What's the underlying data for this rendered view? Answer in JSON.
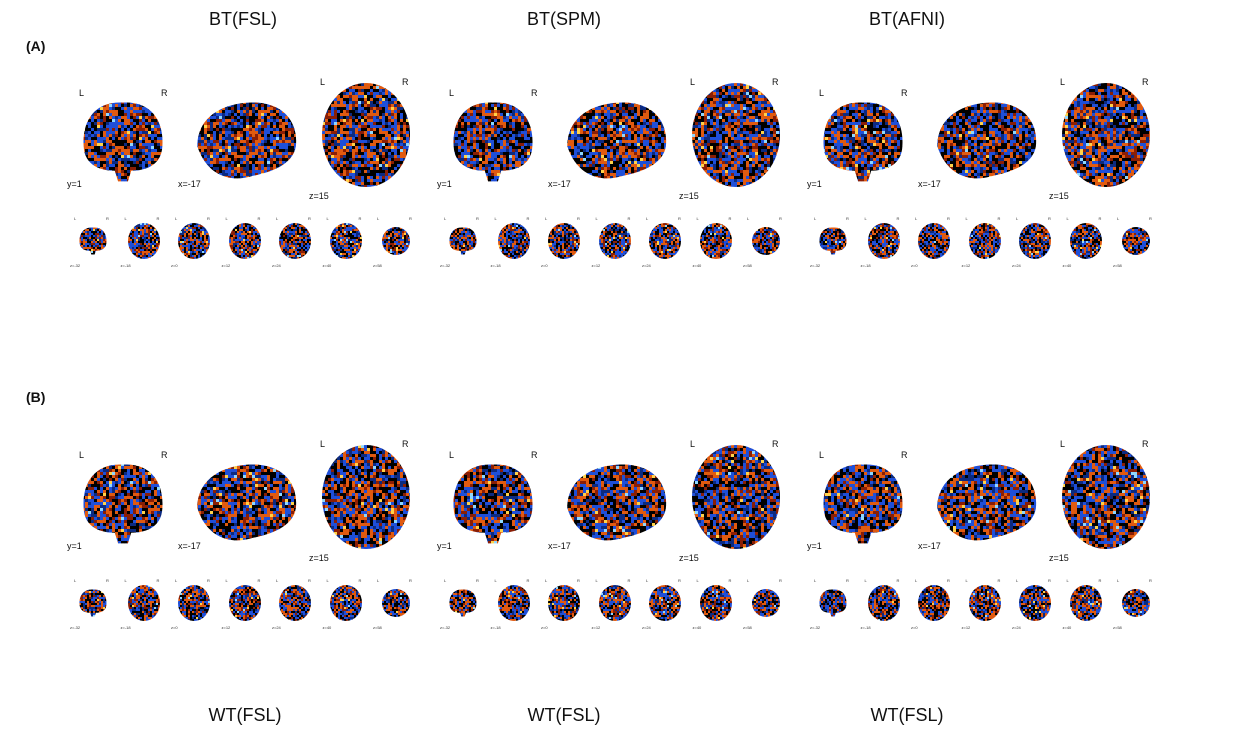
{
  "titles": {
    "top": [
      "BT(FSL)",
      "BT(SPM)",
      "BT(AFNI)"
    ],
    "bottom": [
      "WT(FSL)",
      "WT(FSL)",
      "WT(FSL)"
    ]
  },
  "panels": [
    {
      "label": "(A)",
      "columns": [
        {
          "orientation": {
            "left": "L",
            "right": "R",
            "axial_left": "L",
            "axial_right": "R"
          },
          "cuts": {
            "coronal": "y=1",
            "sagittal": "x=-17",
            "axial": "z=15"
          },
          "mosaic": [
            "z=-32",
            "z=-18",
            "z=0",
            "z=12",
            "z=24",
            "z=40",
            "z=58"
          ]
        },
        {
          "orientation": {
            "left": "L",
            "right": "R",
            "axial_left": "L",
            "axial_right": "R"
          },
          "cuts": {
            "coronal": "y=1",
            "sagittal": "x=-17",
            "axial": "z=15"
          },
          "mosaic": [
            "z=-32",
            "z=-18",
            "z=0",
            "z=12",
            "z=24",
            "z=40",
            "z=58"
          ]
        },
        {
          "orientation": {
            "left": "L",
            "right": "R",
            "axial_left": "L",
            "axial_right": "R"
          },
          "cuts": {
            "coronal": "y=1",
            "sagittal": "x=-17",
            "axial": "z=15"
          },
          "mosaic": [
            "z=-32",
            "z=-18",
            "z=0",
            "z=12",
            "z=24",
            "z=40",
            "z=58"
          ]
        }
      ]
    },
    {
      "label": "(B)",
      "columns": [
        {
          "orientation": {
            "left": "L",
            "right": "R",
            "axial_left": "L",
            "axial_right": "R"
          },
          "cuts": {
            "coronal": "y=1",
            "sagittal": "x=-17",
            "axial": "z=15"
          },
          "mosaic": [
            "z=-32",
            "z=-18",
            "z=0",
            "z=12",
            "z=24",
            "z=40",
            "z=58"
          ]
        },
        {
          "orientation": {
            "left": "L",
            "right": "R",
            "axial_left": "L",
            "axial_right": "R"
          },
          "cuts": {
            "coronal": "y=1",
            "sagittal": "x=-17",
            "axial": "z=15"
          },
          "mosaic": [
            "z=-32",
            "z=-18",
            "z=0",
            "z=12",
            "z=24",
            "z=40",
            "z=58"
          ]
        },
        {
          "orientation": {
            "left": "L",
            "right": "R",
            "axial_left": "L",
            "axial_right": "R"
          },
          "cuts": {
            "coronal": "y=1",
            "sagittal": "x=-17",
            "axial": "z=15"
          },
          "mosaic": [
            "z=-32",
            "z=-18",
            "z=0",
            "z=12",
            "z=24",
            "z=40",
            "z=58"
          ]
        }
      ]
    }
  ],
  "colors": {
    "positive": "#e05a10",
    "positive_hot": "#ffd24a",
    "negative": "#1f4fd8",
    "negative_hot": "#8fd8ff",
    "background": "#000000"
  }
}
